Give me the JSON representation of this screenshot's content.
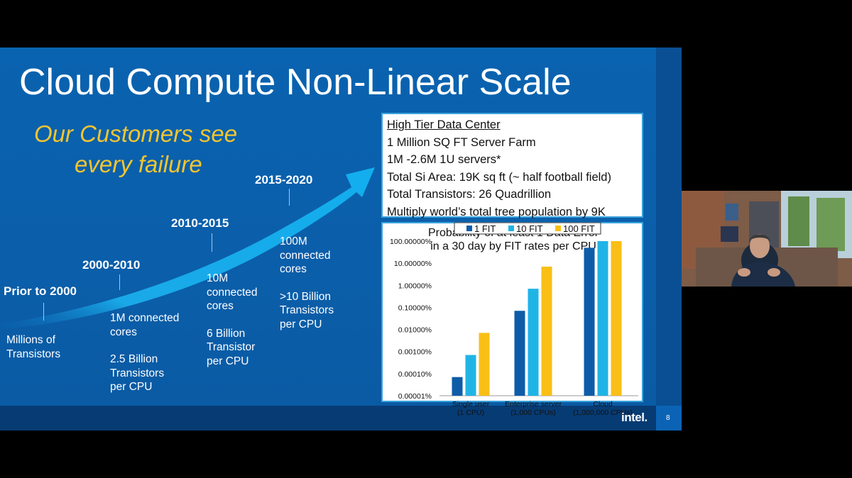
{
  "slide": {
    "title": "Cloud Compute Non-Linear Scale",
    "tagline_line1": "Our Customers see",
    "tagline_line2": "every failure",
    "eras": [
      {
        "label": "Prior to 2000",
        "desc": [
          "Millions of",
          "Transistors"
        ]
      },
      {
        "label": "2000-2010",
        "desc": [
          "1M connected",
          "cores",
          "",
          "2.5 Billion",
          "Transistors",
          "per CPU"
        ]
      },
      {
        "label": "2010-2015",
        "desc": [
          "10M",
          "connected",
          "cores",
          "",
          "6 Billion",
          "Transistor",
          "per CPU"
        ]
      },
      {
        "label": "2015-2020",
        "desc": [
          "100M",
          "connected",
          "cores",
          "",
          ">10 Billion",
          "Transistors",
          "per CPU"
        ]
      }
    ],
    "info_box": {
      "header": "High Tier Data Center",
      "lines": [
        "1 Million SQ FT Server Farm",
        "1M -2.6M 1U servers*",
        "Total Si Area: 19K sq ft (~ half football field)",
        "Total Transistors: 26 Quadrillion",
        "Multiply world’s total tree population by 9K"
      ]
    },
    "logo_text": "intel.",
    "page_number": "8"
  },
  "colors": {
    "slide_bg": "#0a63b0",
    "tagline": "#f4c530",
    "fit1": "#0e5ca8",
    "fit10": "#20b4e6",
    "fit100": "#f9bf16"
  },
  "chart_data": {
    "type": "bar",
    "title": "Probability of at least 1 Data Error",
    "subtitle": "in a 30 day by FIT rates per CPU",
    "categories": [
      "Single user\n(1 CPU)",
      "Enterprise server\n(1,000 CPUs)",
      "Cloud\n(1,000,000 CPUs)"
    ],
    "y_scale": "log",
    "yticks": [
      "100.00000%",
      "10.00000%",
      "1.00000%",
      "0.10000%",
      "0.01000%",
      "0.00100%",
      "0.00010%",
      "0.00001%"
    ],
    "ylim": [
      1e-05,
      100
    ],
    "legend_position": "top",
    "series": [
      {
        "name": "1 FIT",
        "values": [
          7e-05,
          0.07,
          50
        ]
      },
      {
        "name": "10 FIT",
        "values": [
          0.0007,
          0.7,
          100
        ]
      },
      {
        "name": "100 FIT",
        "values": [
          0.007,
          7,
          100
        ]
      }
    ]
  }
}
